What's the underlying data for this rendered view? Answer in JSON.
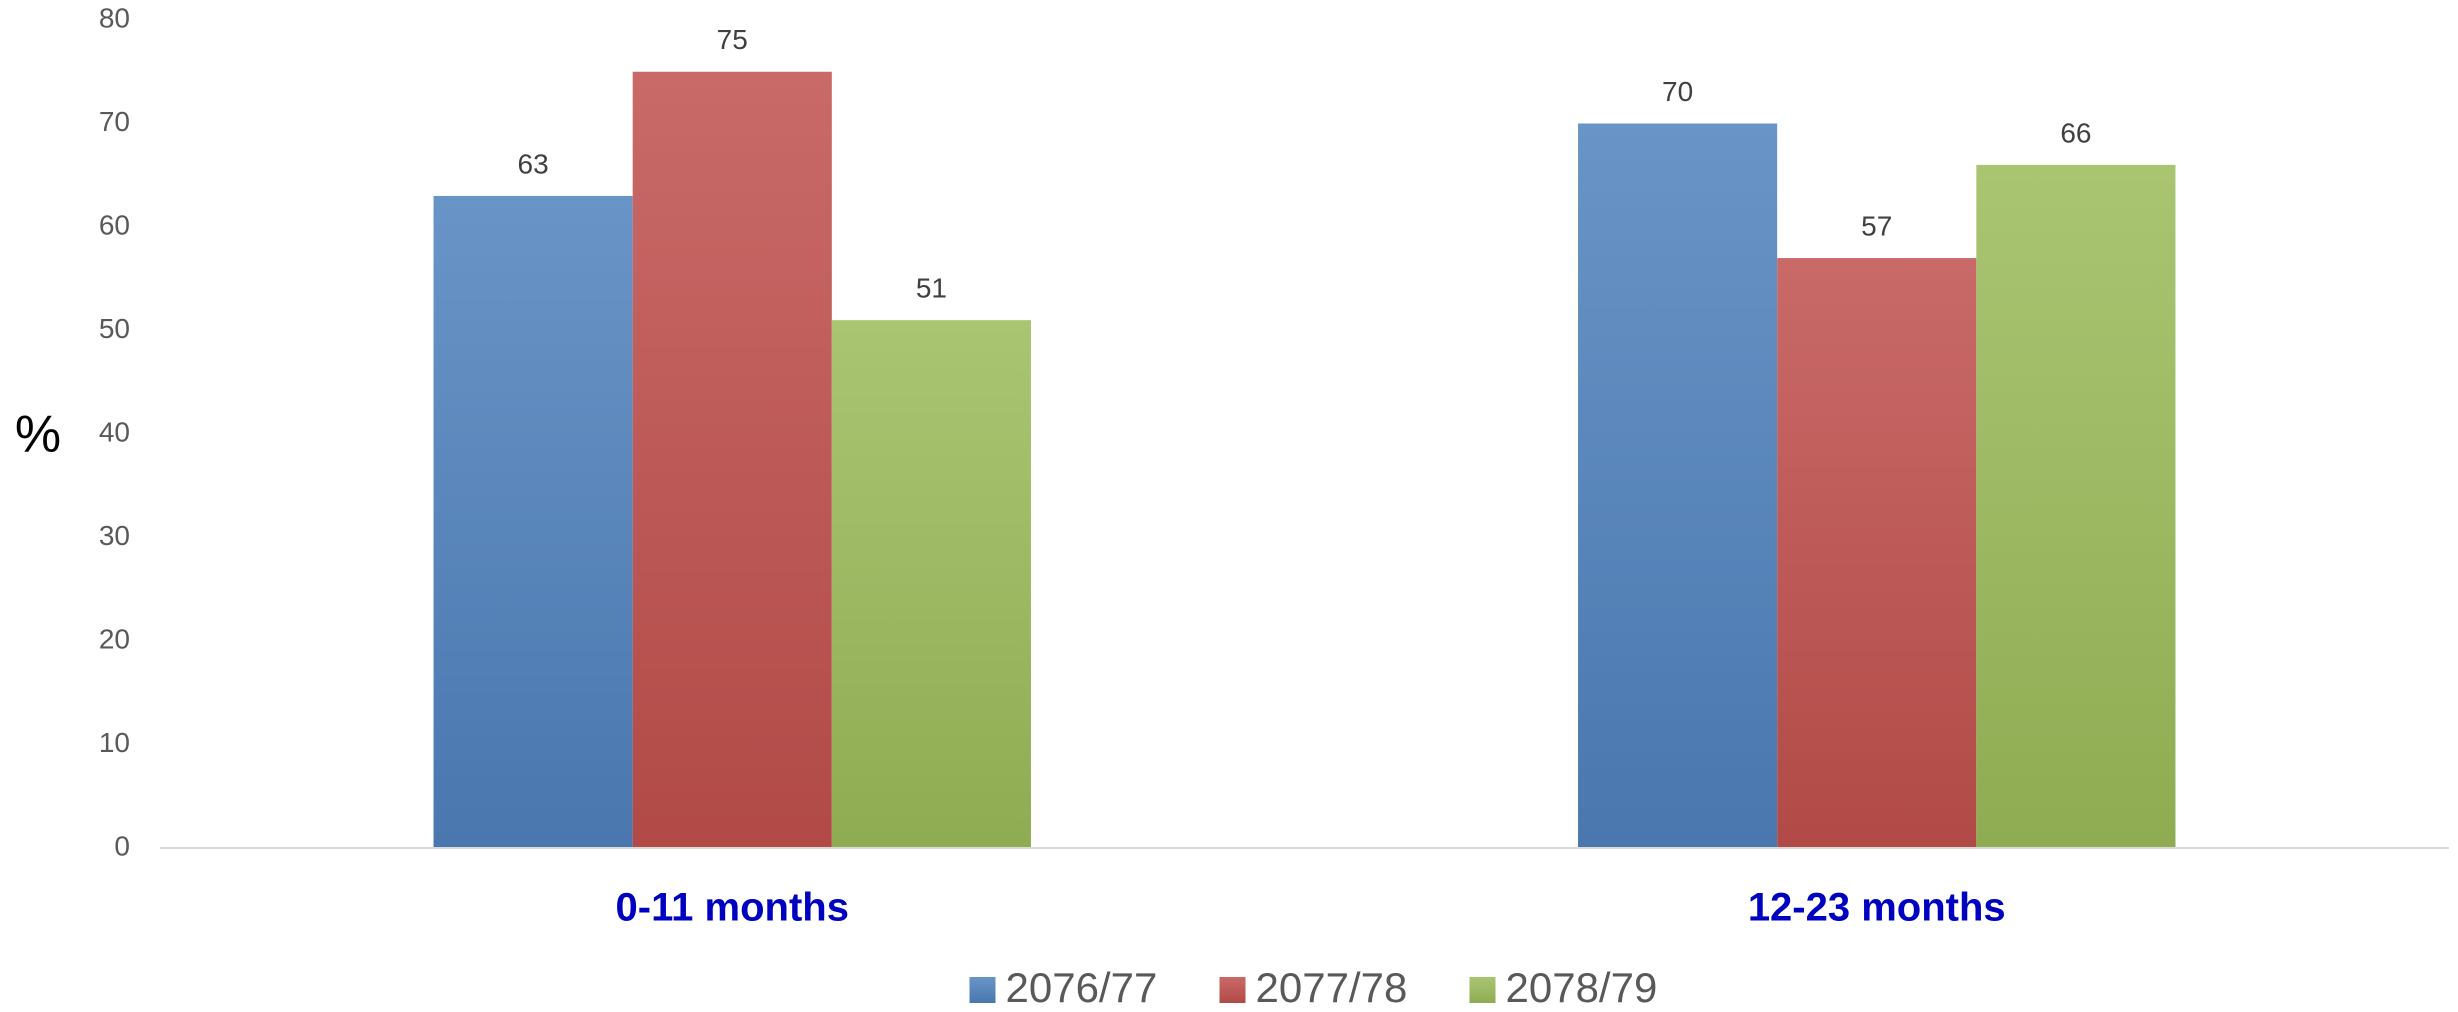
{
  "chart_data": {
    "type": "bar",
    "y_label": "%",
    "categories": [
      "0-11 months",
      "12-23 months"
    ],
    "series": [
      {
        "name": "2076/77",
        "color": "#4f81bd",
        "values": [
          63,
          70
        ]
      },
      {
        "name": "2077/78",
        "color": "#c0504d",
        "values": [
          75,
          57
        ]
      },
      {
        "name": "2078/79",
        "color": "#9bbb59",
        "values": [
          51,
          66
        ]
      }
    ],
    "ylim": [
      0,
      80
    ],
    "yticks": [
      0,
      10,
      20,
      30,
      40,
      50,
      60,
      70,
      80
    ],
    "grid": false,
    "legend": "bottom"
  }
}
